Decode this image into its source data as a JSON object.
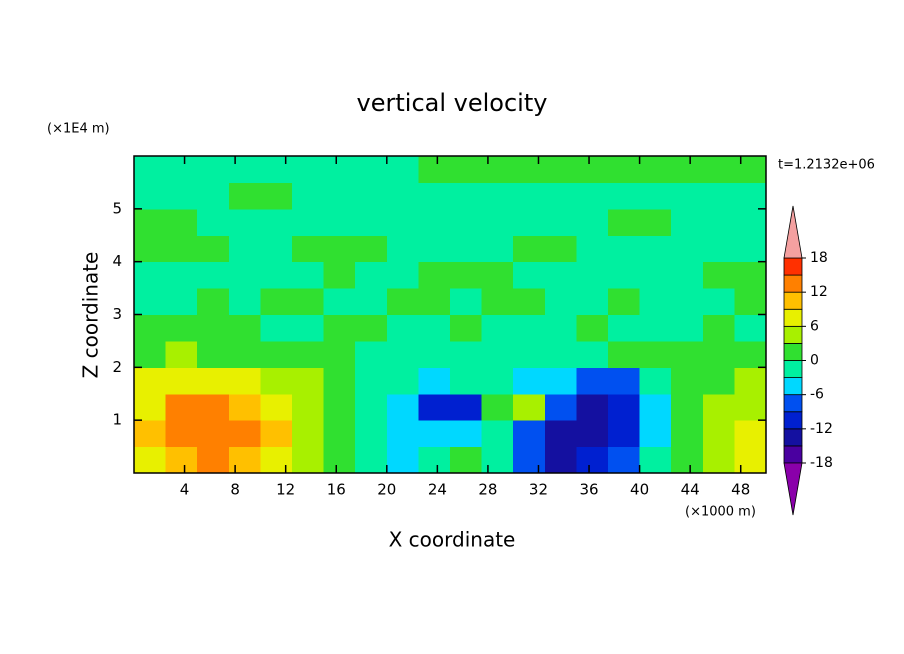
{
  "chart_data": {
    "type": "contour",
    "title": "vertical velocity",
    "x_label": "X coordinate",
    "y_label": "Z coordinate",
    "x_unit": "(×1000 m)",
    "y_unit": "(×1E4 m)",
    "annotation": "t=1.2132e+06",
    "xlim": [
      0,
      50
    ],
    "xticks": [
      4,
      8,
      12,
      16,
      20,
      24,
      28,
      32,
      36,
      40,
      44,
      48
    ],
    "ylim": [
      0,
      6
    ],
    "yticks": [
      1,
      2,
      3,
      4,
      5
    ],
    "x": [
      1.25,
      3.75,
      6.25,
      8.75,
      11.25,
      13.75,
      16.25,
      18.75,
      21.25,
      23.75,
      26.25,
      28.75,
      31.25,
      33.75,
      36.25,
      38.75,
      41.25,
      43.75,
      46.25,
      48.75
    ],
    "y": [
      0.25,
      0.75,
      1.25,
      1.75,
      2.25,
      2.75,
      3.25,
      3.75,
      4.25,
      4.75,
      5.25,
      5.75
    ],
    "z": [
      [
        7,
        11,
        12,
        11,
        8,
        5,
        1,
        -3,
        -4,
        -3,
        2,
        -1,
        -8,
        -14,
        -12,
        -9,
        -3,
        1,
        4,
        7
      ],
      [
        9,
        13,
        14,
        12,
        9,
        5,
        1,
        -3,
        -5,
        -6,
        -6,
        -3,
        -8,
        -14,
        -15,
        -11,
        -5,
        0,
        5,
        8
      ],
      [
        8,
        12,
        12,
        10,
        8,
        4,
        0,
        -2,
        -5,
        -10,
        -11,
        1,
        4,
        -9,
        -13,
        -12,
        -6,
        0,
        3,
        5
      ],
      [
        6,
        7,
        7,
        6,
        5,
        3,
        0,
        -2,
        -3,
        -4,
        -3,
        -2,
        -4,
        -4,
        -7,
        -8,
        -3,
        1,
        2,
        3
      ],
      [
        2,
        3,
        2,
        2,
        1,
        1,
        1,
        -1,
        -2,
        -2,
        -1,
        -1,
        -1,
        -2,
        -1,
        1,
        2,
        1,
        0,
        1
      ],
      [
        1,
        0,
        1,
        2,
        -1,
        -1,
        1,
        0,
        -1,
        -1,
        1,
        -1,
        -1,
        -1,
        1,
        -1,
        -1,
        -1,
        1,
        -1
      ],
      [
        -1,
        -1,
        1,
        -1,
        1,
        1,
        -1,
        -1,
        1,
        1,
        -1,
        1,
        1,
        -1,
        -1,
        1,
        -1,
        -1,
        -1,
        1
      ],
      [
        -1,
        -1,
        -1,
        -1,
        -1,
        -1,
        1,
        -1,
        -1,
        1,
        1,
        1,
        -1,
        -1,
        -1,
        -1,
        -1,
        -1,
        1,
        1
      ],
      [
        1,
        1,
        1,
        -1,
        -1,
        1,
        1,
        1,
        -1,
        -1,
        -1,
        -1,
        1,
        1,
        -1,
        -1,
        -1,
        -1,
        -1,
        -1
      ],
      [
        1,
        1,
        -1,
        -1,
        -1,
        -1,
        -1,
        -1,
        -1,
        -1,
        -1,
        -1,
        -1,
        -1,
        -1,
        1,
        1,
        -1,
        -1,
        -1
      ],
      [
        -1,
        -1,
        -1,
        1,
        1,
        -1,
        -1,
        -1,
        -1,
        -1,
        -1,
        -1,
        -1,
        -1,
        -1,
        -1,
        -1,
        -1,
        -1,
        -1
      ],
      [
        -1,
        -1,
        -1,
        -1,
        -1,
        -1,
        -1,
        -1,
        -1,
        1,
        1,
        1,
        1,
        1,
        1,
        1,
        1,
        1,
        1,
        1
      ]
    ],
    "levels": [
      -18,
      -15,
      -12,
      -9,
      -6,
      -3,
      0,
      3,
      6,
      9,
      12,
      15,
      18
    ],
    "colorbar_ticks": [
      -18,
      -12,
      -6,
      0,
      6,
      12,
      18
    ],
    "colors": [
      "#8a00aa",
      "#4a00a0",
      "#1410a0",
      "#0020d0",
      "#0050f0",
      "#00d8ff",
      "#00f0a0",
      "#30e030",
      "#a8f000",
      "#e8f000",
      "#ffc000",
      "#ff8000",
      "#ff3000",
      "#f4a0a0"
    ]
  }
}
